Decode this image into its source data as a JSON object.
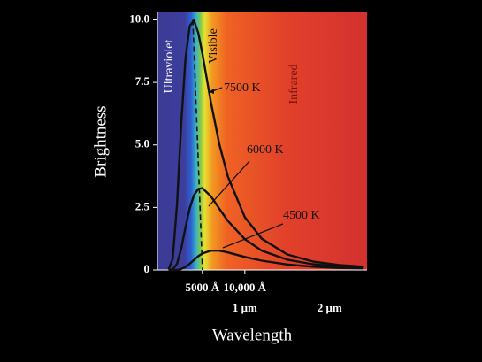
{
  "chart_data": {
    "type": "line",
    "y_label": "Brightness",
    "x_label": "Wavelength",
    "x": [
      1000,
      1500,
      2000,
      2500,
      3000,
      3500,
      4000,
      4500,
      5000,
      6000,
      7000,
      8000,
      10000,
      12000,
      15000,
      18000,
      21000,
      24000
    ],
    "series": [
      {
        "name": "7500 K",
        "color": "#111111",
        "values": [
          0.01,
          0.45,
          2.61,
          5.85,
          8.44,
          9.76,
          9.98,
          9.49,
          8.64,
          6.72,
          5.03,
          3.74,
          2.11,
          1.25,
          0.62,
          0.34,
          0.2,
          0.13
        ]
      },
      {
        "name": "6000 K",
        "color": "#111111",
        "values": [
          0,
          0.02,
          0.24,
          0.86,
          1.7,
          2.47,
          2.99,
          3.24,
          3.27,
          2.95,
          2.45,
          1.96,
          1.23,
          0.77,
          0.41,
          0.23,
          0.14,
          0.09
        ]
      },
      {
        "name": "4500 K",
        "color": "#111111",
        "values": [
          0,
          0,
          0,
          0.04,
          0.12,
          0.25,
          0.4,
          0.55,
          0.66,
          0.77,
          0.77,
          0.7,
          0.52,
          0.37,
          0.22,
          0.13,
          0.08,
          0.06
        ]
      }
    ],
    "peak_line": {
      "x": [
        3864,
        5000
      ],
      "values": [
        10,
        0
      ]
    },
    "regions": [
      "Ultraviolet",
      "Visible",
      "Infrared"
    ],
    "xlim": [
      -300,
      24400
    ],
    "ylim": [
      0,
      10.3
    ],
    "xticks": [
      {
        "value": 5000,
        "label": "5000 Å"
      },
      {
        "value": 10000,
        "label": "10,000 Å"
      }
    ],
    "xticks2": [
      {
        "value": 10000,
        "label": "1 μm"
      },
      {
        "value": 20000,
        "label": "2 μm"
      }
    ],
    "yticks": [
      0,
      2.5,
      {
        "value": 5,
        "label": "5.0"
      },
      7.5,
      {
        "value": 10,
        "label": "10.0"
      }
    ]
  }
}
